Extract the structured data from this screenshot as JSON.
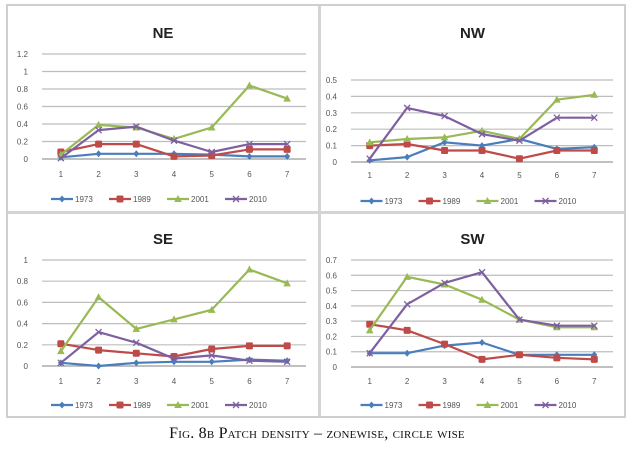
{
  "caption": "Fig. 8b Patch density – zonewise, circle wise",
  "series_style": [
    {
      "name": "1973",
      "color": "#4a7ebb",
      "marker": "diamond"
    },
    {
      "name": "1989",
      "color": "#be4b48",
      "marker": "square"
    },
    {
      "name": "2001",
      "color": "#98b954",
      "marker": "triangle"
    },
    {
      "name": "2010",
      "color": "#7d60a0",
      "marker": "x"
    }
  ],
  "chart_data": [
    {
      "type": "line",
      "title": "NE",
      "xlabel": "",
      "ylabel": "",
      "categories": [
        "1",
        "2",
        "3",
        "4",
        "5",
        "6",
        "7"
      ],
      "ylim": [
        0,
        1.2
      ],
      "yticks": [
        "0",
        "0.2",
        "0.4",
        "0.6",
        "0.8",
        "1",
        "1.2"
      ],
      "ytick_values": [
        0,
        0.2,
        0.4,
        0.6,
        0.8,
        1,
        1.2
      ],
      "grid": true,
      "legend": "bottom",
      "series": [
        {
          "name": "1973",
          "values": [
            0.02,
            0.06,
            0.06,
            0.06,
            0.05,
            0.03,
            0.03
          ]
        },
        {
          "name": "1989",
          "values": [
            0.08,
            0.17,
            0.17,
            0.03,
            0.04,
            0.11,
            0.11
          ]
        },
        {
          "name": "2001",
          "values": [
            0.05,
            0.39,
            0.36,
            0.23,
            0.36,
            0.84,
            0.69
          ]
        },
        {
          "name": "2010",
          "values": [
            0.01,
            0.33,
            0.37,
            0.21,
            0.08,
            0.17,
            0.17
          ]
        }
      ]
    },
    {
      "type": "line",
      "title": "NW",
      "xlabel": "",
      "ylabel": "",
      "categories": [
        "1",
        "2",
        "3",
        "4",
        "5",
        "6",
        "7"
      ],
      "ylim": [
        0,
        0.5
      ],
      "yticks": [
        "0",
        "0.1",
        "0.2",
        "0.3",
        "0.4",
        "0.5"
      ],
      "ytick_values": [
        0,
        0.1,
        0.2,
        0.3,
        0.4,
        0.5
      ],
      "grid": true,
      "legend": "bottom",
      "series": [
        {
          "name": "1973",
          "values": [
            0.01,
            0.03,
            0.12,
            0.1,
            0.14,
            0.08,
            0.09
          ]
        },
        {
          "name": "1989",
          "values": [
            0.1,
            0.11,
            0.07,
            0.07,
            0.02,
            0.07,
            0.07
          ]
        },
        {
          "name": "2001",
          "values": [
            0.12,
            0.14,
            0.15,
            0.19,
            0.14,
            0.38,
            0.41
          ]
        },
        {
          "name": "2010",
          "values": [
            0.02,
            0.33,
            0.28,
            0.17,
            0.13,
            0.27,
            0.27
          ]
        }
      ]
    },
    {
      "type": "line",
      "title": "SE",
      "xlabel": "",
      "ylabel": "",
      "categories": [
        "1",
        "2",
        "3",
        "4",
        "5",
        "6",
        "7"
      ],
      "ylim": [
        0,
        1
      ],
      "yticks": [
        "0",
        "0.2",
        "0.4",
        "0.6",
        "0.8",
        "1"
      ],
      "ytick_values": [
        0,
        0.2,
        0.4,
        0.6,
        0.8,
        1
      ],
      "grid": true,
      "legend": "bottom",
      "series": [
        {
          "name": "1973",
          "values": [
            0.03,
            0.0,
            0.03,
            0.04,
            0.04,
            0.06,
            0.05
          ]
        },
        {
          "name": "1989",
          "values": [
            0.21,
            0.15,
            0.12,
            0.09,
            0.16,
            0.19,
            0.19
          ]
        },
        {
          "name": "2001",
          "values": [
            0.14,
            0.65,
            0.35,
            0.44,
            0.53,
            0.91,
            0.78
          ]
        },
        {
          "name": "2010",
          "values": [
            0.03,
            0.32,
            0.22,
            0.07,
            0.1,
            0.05,
            0.04
          ]
        }
      ]
    },
    {
      "type": "line",
      "title": "SW",
      "xlabel": "",
      "ylabel": "",
      "categories": [
        "1",
        "2",
        "3",
        "4",
        "5",
        "6",
        "7"
      ],
      "ylim": [
        0,
        0.7
      ],
      "yticks": [
        "0",
        "0.1",
        "0.2",
        "0.3",
        "0.4",
        "0.5",
        "0.6",
        "0.7"
      ],
      "ytick_values": [
        0,
        0.1,
        0.2,
        0.3,
        0.4,
        0.5,
        0.6,
        0.7
      ],
      "grid": true,
      "legend": "bottom",
      "series": [
        {
          "name": "1973",
          "values": [
            0.09,
            0.09,
            0.14,
            0.16,
            0.08,
            0.08,
            0.08
          ]
        },
        {
          "name": "1989",
          "values": [
            0.28,
            0.24,
            0.15,
            0.05,
            0.08,
            0.06,
            0.05
          ]
        },
        {
          "name": "2001",
          "values": [
            0.24,
            0.59,
            0.54,
            0.44,
            0.31,
            0.26,
            0.26
          ]
        },
        {
          "name": "2010",
          "values": [
            0.09,
            0.41,
            0.55,
            0.62,
            0.31,
            0.27,
            0.27
          ]
        }
      ]
    }
  ]
}
